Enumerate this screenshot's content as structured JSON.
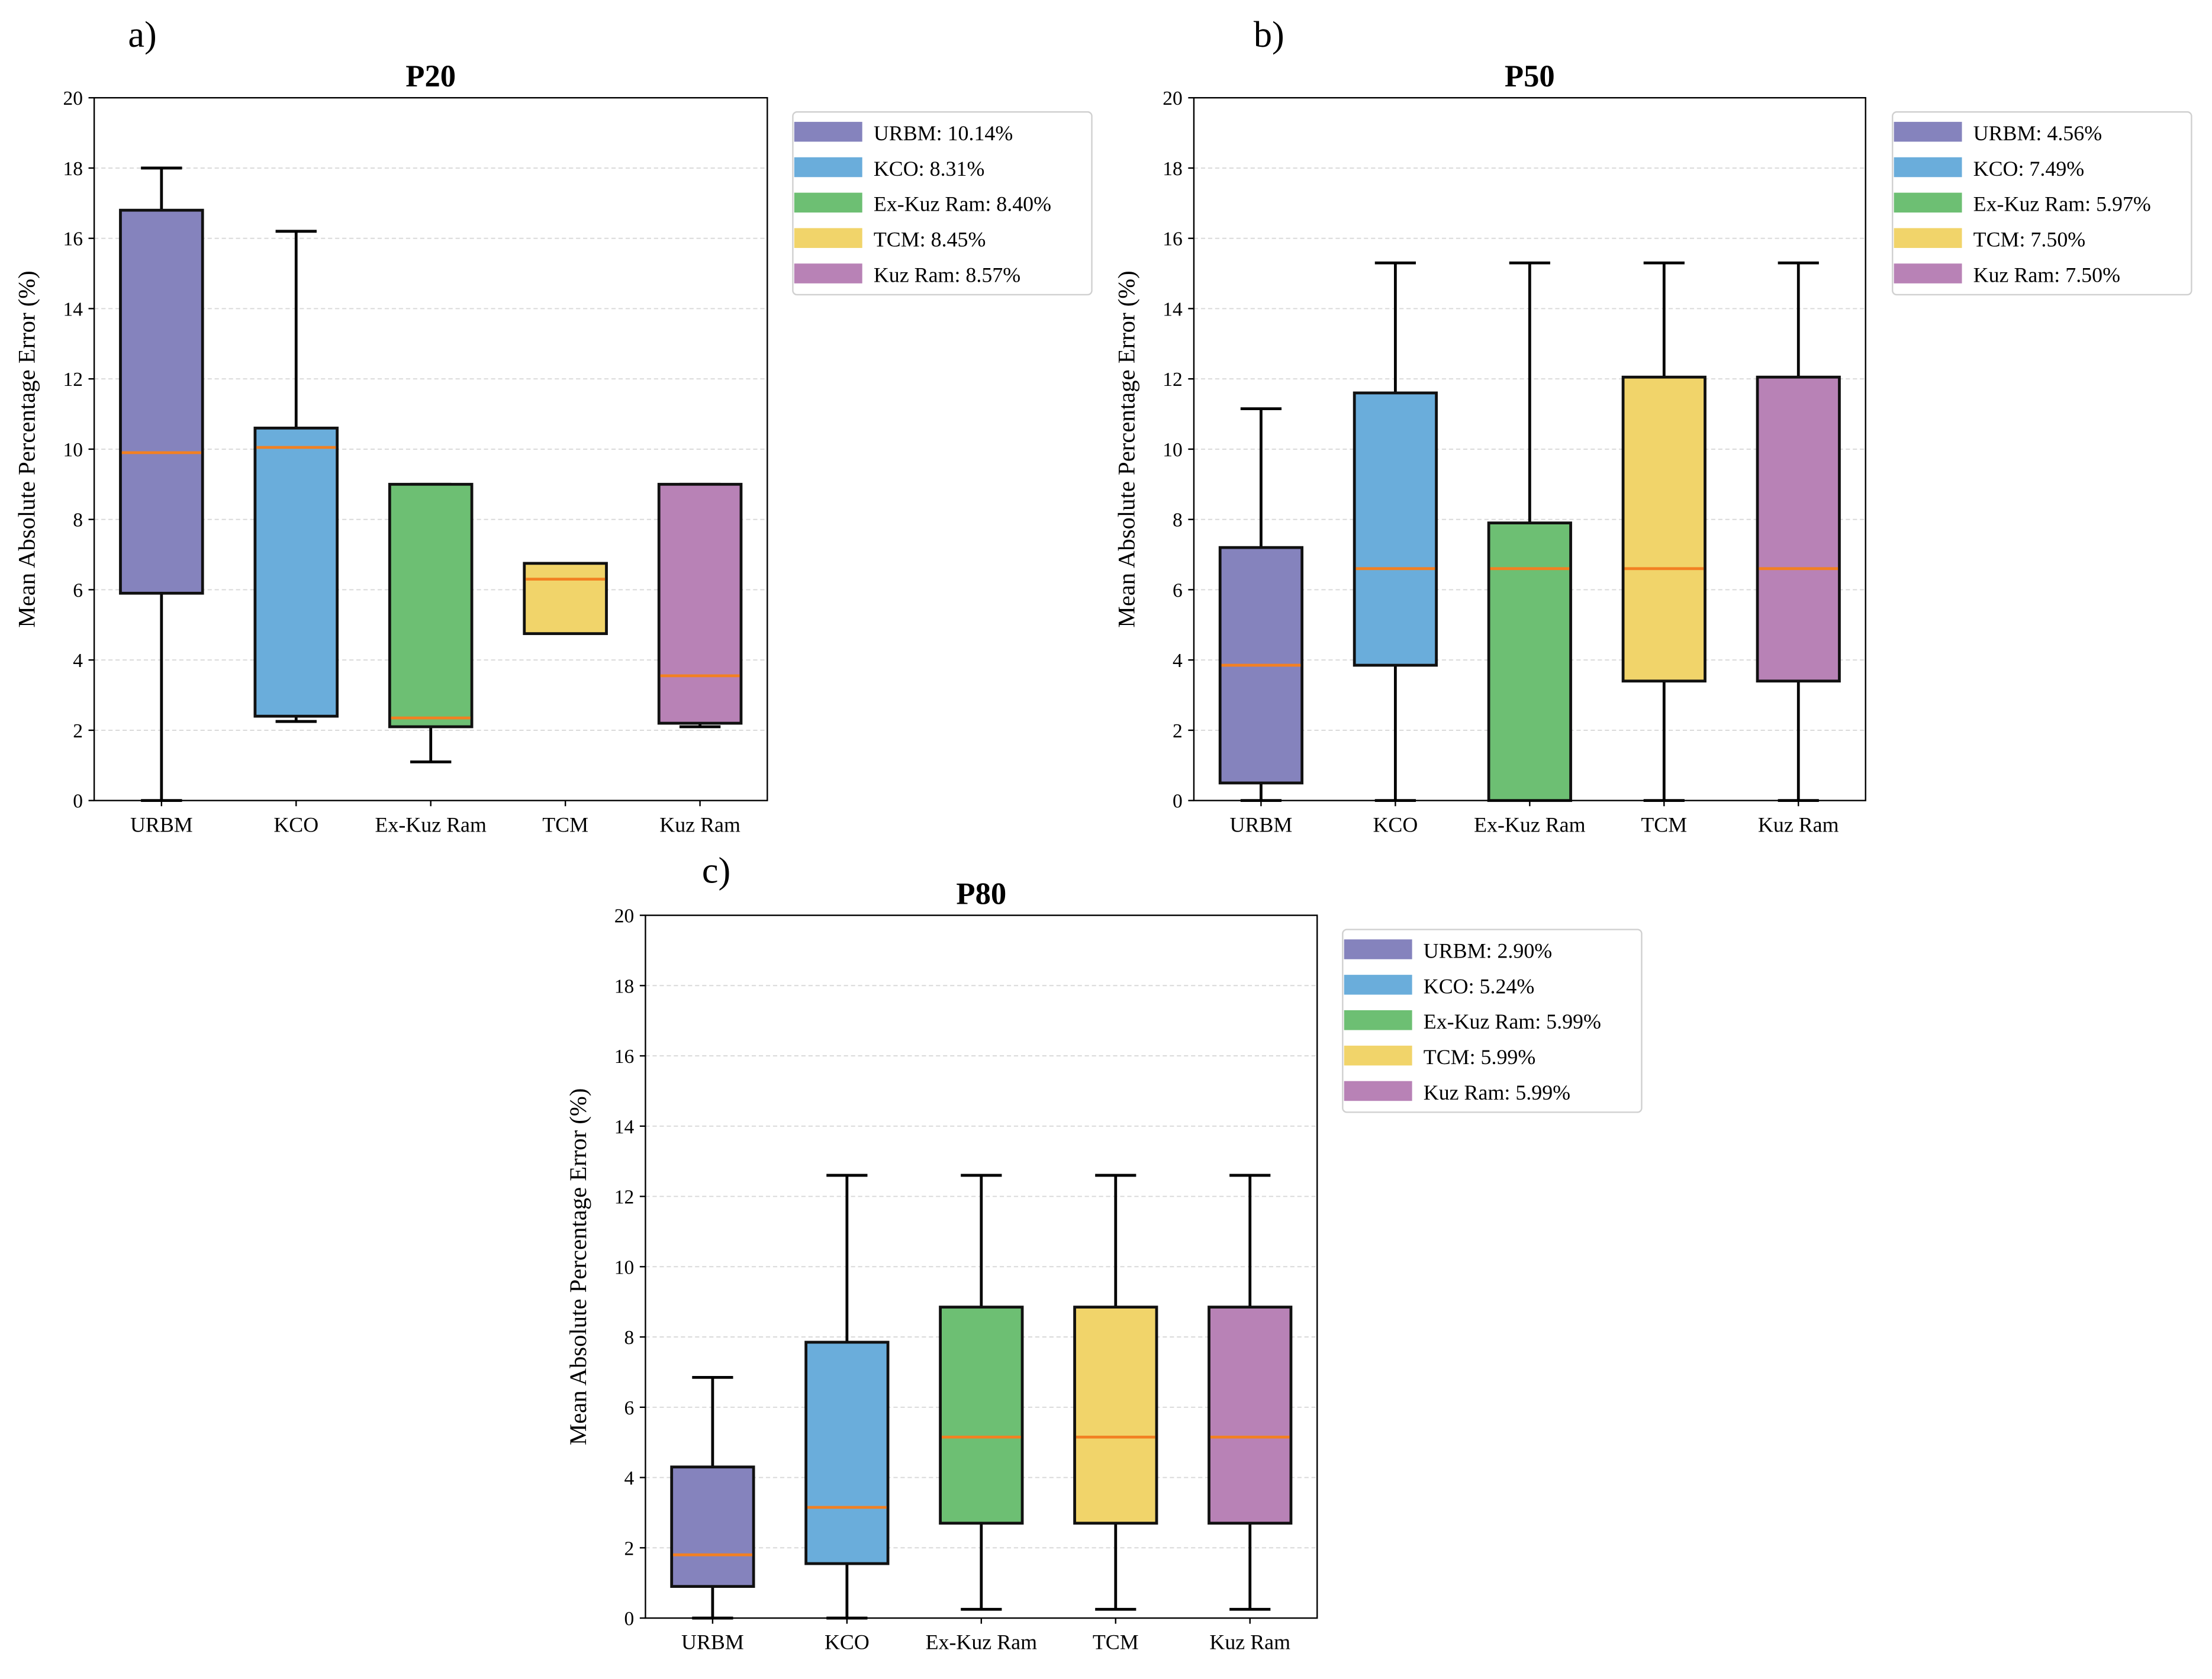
{
  "chart_data": [
    {
      "type": "boxplot",
      "panel_label": "a)",
      "title": "P20",
      "ylabel": "Mean Absolute Percentage Error (%)",
      "ylim": [
        0,
        20
      ],
      "yticks": [
        0,
        2,
        4,
        6,
        8,
        10,
        12,
        14,
        16,
        18,
        20
      ],
      "grid": "y dashed",
      "legend_position": "outside-right-top",
      "categories": [
        "URBM",
        "KCO",
        "Ex-Kuz Ram",
        "TCM",
        "Kuz Ram"
      ],
      "colors": [
        "#8583bd",
        "#6aaddb",
        "#6dbf73",
        "#f1d46a",
        "#b882b6"
      ],
      "median_color": "#f28022",
      "legend": [
        "URBM: 10.14%",
        "KCO: 8.31%",
        "Ex-Kuz Ram: 8.40%",
        "TCM: 8.45%",
        "Kuz Ram: 8.57%"
      ],
      "boxes": [
        {
          "min": 0,
          "q1": 5.9,
          "median": 9.9,
          "q3": 16.8,
          "max": 18.0
        },
        {
          "min": 2.25,
          "q1": 2.4,
          "median": 10.05,
          "q3": 10.6,
          "max": 16.2
        },
        {
          "min": 1.1,
          "q1": 2.1,
          "median": 2.35,
          "q3": 9.0,
          "max": 9.0
        },
        {
          "min": 4.75,
          "q1": 4.75,
          "median": 6.3,
          "q3": 6.75,
          "max": 6.75
        },
        {
          "min": 2.1,
          "q1": 2.2,
          "median": 3.55,
          "q3": 9.0,
          "max": 9.0
        }
      ]
    },
    {
      "type": "boxplot",
      "panel_label": "b)",
      "title": "P50",
      "ylabel": "Mean Absolute Percentage Error (%)",
      "ylim": [
        0,
        20
      ],
      "yticks": [
        0,
        2,
        4,
        6,
        8,
        10,
        12,
        14,
        16,
        18,
        20
      ],
      "grid": "y dashed",
      "legend_position": "outside-right-top",
      "categories": [
        "URBM",
        "KCO",
        "Ex-Kuz Ram",
        "TCM",
        "Kuz Ram"
      ],
      "colors": [
        "#8583bd",
        "#6aaddb",
        "#6dbf73",
        "#f1d46a",
        "#b882b6"
      ],
      "median_color": "#f28022",
      "legend": [
        "URBM: 4.56%",
        "KCO: 7.49%",
        "Ex-Kuz Ram: 5.97%",
        "TCM: 7.50%",
        "Kuz Ram: 7.50%"
      ],
      "boxes": [
        {
          "min": 0,
          "q1": 0.5,
          "median": 3.85,
          "q3": 7.2,
          "max": 11.15
        },
        {
          "min": 0,
          "q1": 3.85,
          "median": 6.6,
          "q3": 11.6,
          "max": 15.3
        },
        {
          "min": 0,
          "q1": 0,
          "median": 6.6,
          "q3": 7.9,
          "max": 15.3
        },
        {
          "min": 0,
          "q1": 3.4,
          "median": 6.6,
          "q3": 12.05,
          "max": 15.3
        },
        {
          "min": 0,
          "q1": 3.4,
          "median": 6.6,
          "q3": 12.05,
          "max": 15.3
        }
      ]
    },
    {
      "type": "boxplot",
      "panel_label": "c)",
      "title": "P80",
      "ylabel": "Mean Absolute Percentage Error (%)",
      "ylim": [
        0,
        20
      ],
      "yticks": [
        0,
        2,
        4,
        6,
        8,
        10,
        12,
        14,
        16,
        18,
        20
      ],
      "grid": "y dashed",
      "legend_position": "outside-right-top",
      "categories": [
        "URBM",
        "KCO",
        "Ex-Kuz Ram",
        "TCM",
        "Kuz Ram"
      ],
      "colors": [
        "#8583bd",
        "#6aaddb",
        "#6dbf73",
        "#f1d46a",
        "#b882b6"
      ],
      "median_color": "#f28022",
      "legend": [
        "URBM: 2.90%",
        "KCO: 5.24%",
        "Ex-Kuz Ram: 5.99%",
        "TCM: 5.99%",
        "Kuz Ram: 5.99%"
      ],
      "boxes": [
        {
          "min": 0,
          "q1": 0.9,
          "median": 1.8,
          "q3": 4.3,
          "max": 6.85
        },
        {
          "min": 0,
          "q1": 1.55,
          "median": 3.15,
          "q3": 7.85,
          "max": 12.6
        },
        {
          "min": 0.25,
          "q1": 2.7,
          "median": 5.15,
          "q3": 8.85,
          "max": 12.6
        },
        {
          "min": 0.25,
          "q1": 2.7,
          "median": 5.15,
          "q3": 8.85,
          "max": 12.6
        },
        {
          "min": 0.25,
          "q1": 2.7,
          "median": 5.15,
          "q3": 8.85,
          "max": 12.6
        }
      ]
    }
  ]
}
